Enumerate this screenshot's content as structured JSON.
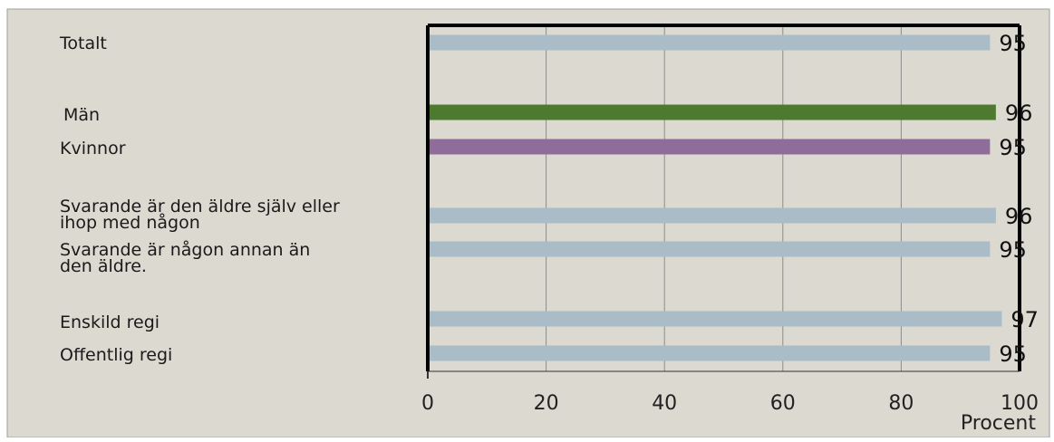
{
  "chart_data": {
    "type": "bar",
    "orientation": "horizontal",
    "categories": [
      "Totalt",
      "Män",
      "Kvinnor",
      "Svarande är den äldre själv eller ihop med någon",
      "Svarande är någon annan än den äldre.",
      "Enskild regi",
      "Offentlig regi"
    ],
    "values": [
      95,
      96,
      95,
      96,
      95,
      97,
      95
    ],
    "value_labels": [
      "95",
      "96",
      "95",
      "96",
      "95",
      "97",
      "95"
    ],
    "bar_colors": [
      "#a9bcc7",
      "#4d7a2e",
      "#8e6d9b",
      "#a9bcc7",
      "#a9bcc7",
      "#a9bcc7",
      "#a9bcc7"
    ],
    "xlim": [
      0,
      100
    ],
    "xticks": [
      "0",
      "20",
      "40",
      "60",
      "80",
      "100"
    ],
    "xlabel": "Procent",
    "grid": "vertical",
    "background": "#dcd9d0"
  }
}
